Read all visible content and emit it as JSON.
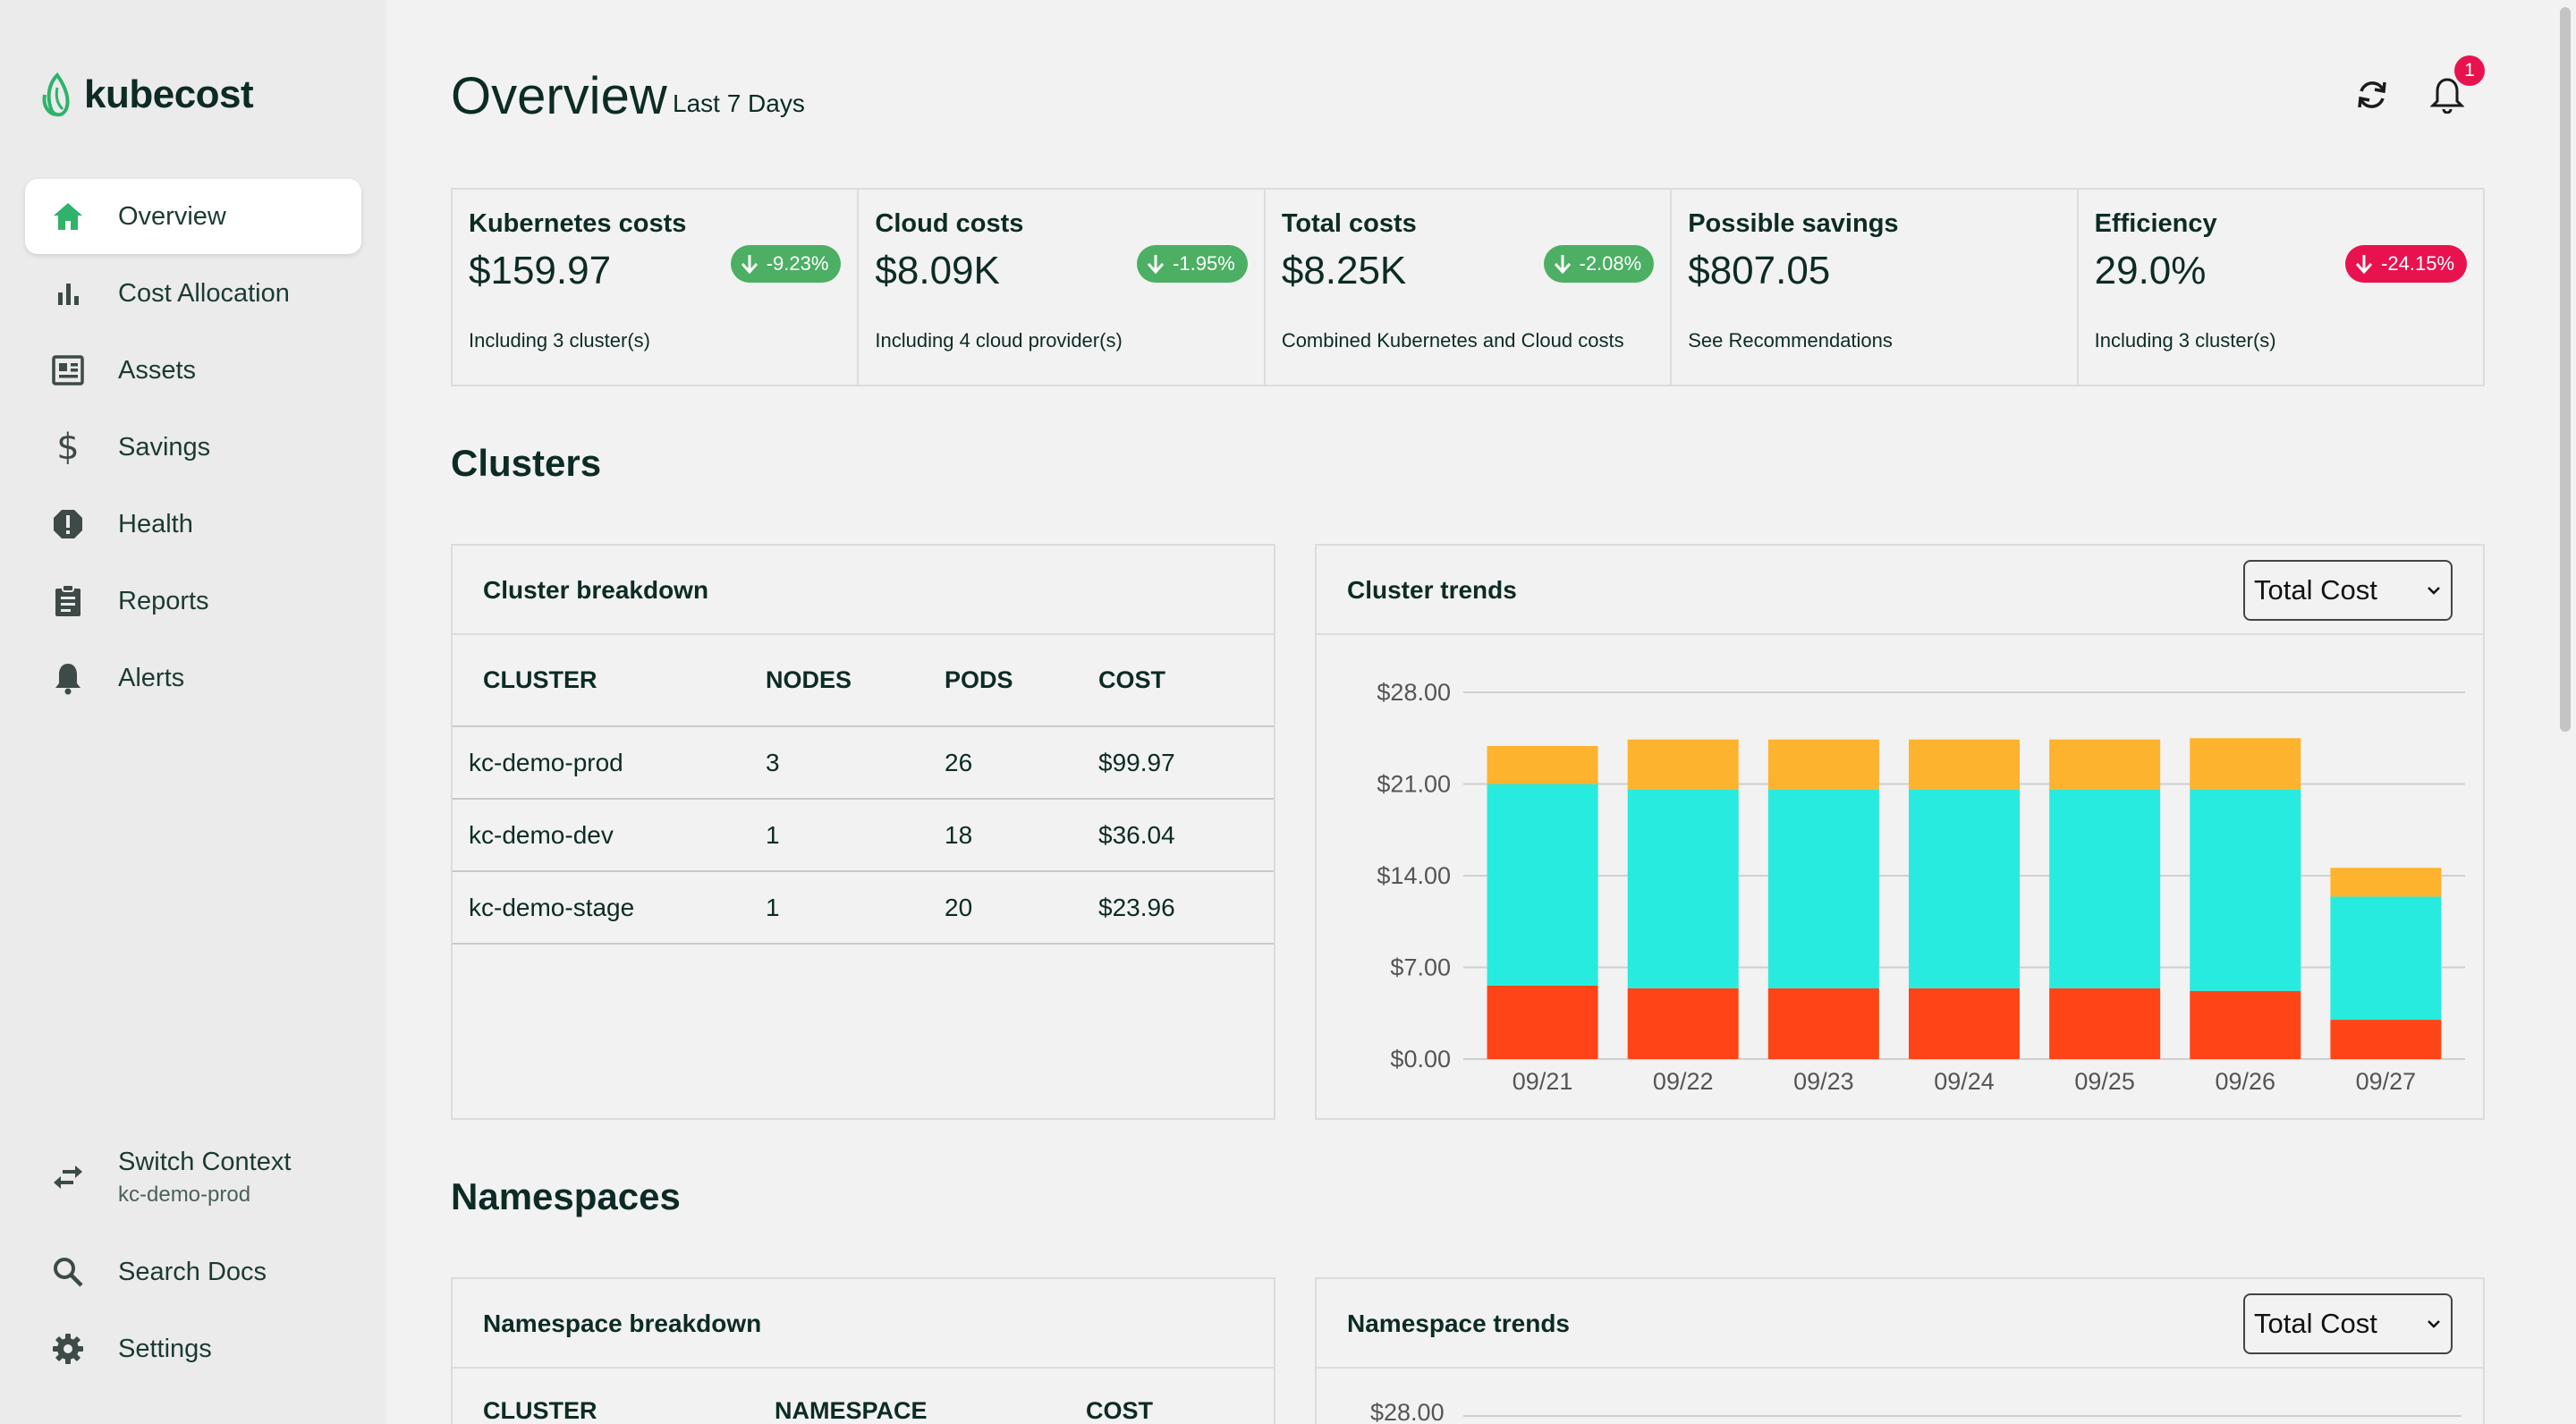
{
  "app": {
    "brand": "kubecost",
    "accent": "#2fb36a"
  },
  "sidebar": {
    "items": [
      {
        "label": "Overview",
        "icon": "home-icon",
        "active": true
      },
      {
        "label": "Cost Allocation",
        "icon": "bar-chart-icon"
      },
      {
        "label": "Assets",
        "icon": "assets-icon"
      },
      {
        "label": "Savings",
        "icon": "dollar-icon"
      },
      {
        "label": "Health",
        "icon": "alert-circle-icon"
      },
      {
        "label": "Reports",
        "icon": "clipboard-icon"
      },
      {
        "label": "Alerts",
        "icon": "bell-icon"
      }
    ],
    "bottom": {
      "switch_context": {
        "label": "Switch Context",
        "value": "kc-demo-prod",
        "icon": "swap-icon"
      },
      "search_docs": {
        "label": "Search Docs",
        "icon": "search-icon"
      },
      "settings": {
        "label": "Settings",
        "icon": "gear-icon"
      }
    }
  },
  "header": {
    "title": "Overview",
    "subtitle": "Last 7 Days",
    "notification_count": "1"
  },
  "kpis": [
    {
      "title": "Kubernetes costs",
      "value": "$159.97",
      "change": "-9.23%",
      "subtext": "Including 3 cluster(s)",
      "color": "#4caf63"
    },
    {
      "title": "Cloud costs",
      "value": "$8.09K",
      "change": "-1.95%",
      "subtext": "Including 4 cloud provider(s)",
      "color": "#4caf63"
    },
    {
      "title": "Total costs",
      "value": "$8.25K",
      "change": "-2.08%",
      "subtext": "Combined Kubernetes and Cloud costs",
      "color": "#4caf63"
    },
    {
      "title": "Possible savings",
      "value": "$807.05",
      "subtext": "See Recommendations"
    },
    {
      "title": "Efficiency",
      "value": "29.0%",
      "change": "-24.15%",
      "subtext": "Including 3 cluster(s)",
      "color": "#e8124f"
    }
  ],
  "clusters": {
    "section_title": "Clusters",
    "breakdown": {
      "title": "Cluster breakdown",
      "columns": [
        "CLUSTER",
        "NODES",
        "PODS",
        "COST"
      ],
      "rows": [
        [
          "kc-demo-prod",
          "3",
          "26",
          "$99.97"
        ],
        [
          "kc-demo-dev",
          "1",
          "18",
          "$36.04"
        ],
        [
          "kc-demo-stage",
          "1",
          "20",
          "$23.96"
        ]
      ]
    },
    "trends": {
      "title": "Cluster trends",
      "select_value": "Total Cost"
    }
  },
  "namespaces": {
    "section_title": "Namespaces",
    "breakdown": {
      "title": "Namespace breakdown",
      "columns": [
        "CLUSTER",
        "NAMESPACE",
        "COST"
      ]
    },
    "trends": {
      "title": "Namespace trends",
      "select_value": "Total Cost",
      "first_tick": "$28.00"
    }
  },
  "chart_data": {
    "type": "bar",
    "stacked": true,
    "categories": [
      "09/21",
      "09/22",
      "09/23",
      "09/24",
      "09/25",
      "09/26",
      "09/27"
    ],
    "series": [
      {
        "values": [
          5.6,
          5.4,
          5.4,
          5.4,
          5.4,
          5.2,
          3.0
        ],
        "color": "#ff4417"
      },
      {
        "values": [
          15.4,
          15.2,
          15.2,
          15.2,
          15.2,
          15.4,
          9.4
        ],
        "color": "#27ebde"
      },
      {
        "values": [
          2.9,
          3.8,
          3.8,
          3.8,
          3.8,
          3.9,
          2.2
        ],
        "color": "#fdb32e"
      }
    ],
    "ylim": [
      0,
      28
    ],
    "yticks": [
      "$0.00",
      "$7.00",
      "$14.00",
      "$21.00",
      "$28.00"
    ],
    "ytick_values": [
      0,
      7,
      14,
      21,
      28
    ],
    "grid": true
  }
}
